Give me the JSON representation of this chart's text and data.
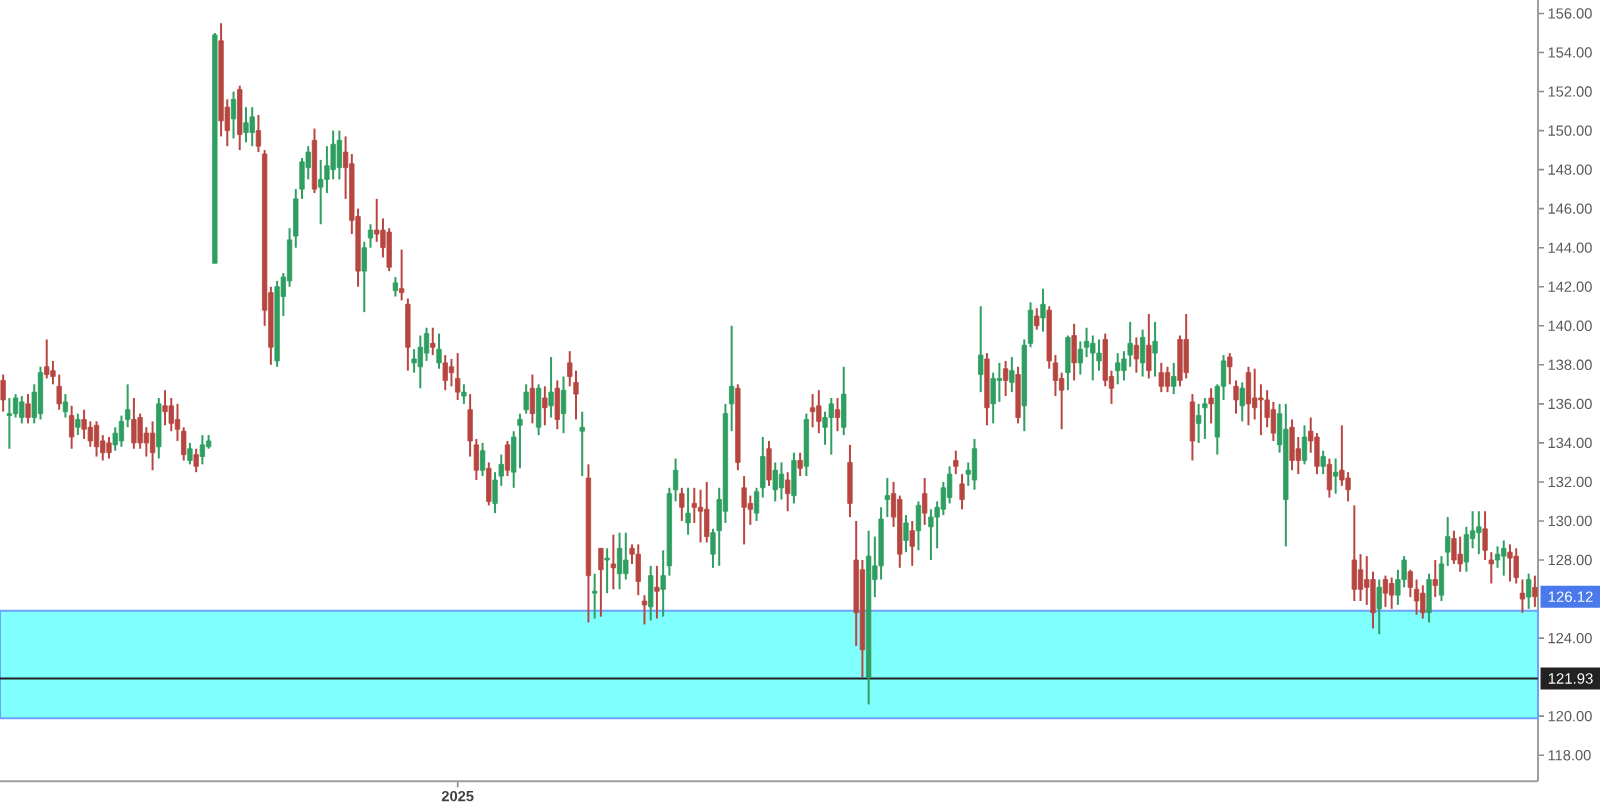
{
  "chart_data": {
    "type": "candlestick",
    "categories": [
      null,
      null,
      null,
      null,
      null,
      null,
      null,
      null,
      null,
      null,
      null,
      null,
      null,
      null,
      null,
      null,
      null,
      null,
      null,
      null,
      null,
      null,
      null,
      null,
      null,
      null,
      null,
      null,
      null,
      null,
      null,
      null,
      null,
      null,
      null,
      null,
      null,
      null,
      null,
      null,
      null,
      null,
      null,
      null,
      null,
      null,
      null,
      null,
      null,
      null,
      null,
      null,
      null,
      null,
      null,
      null,
      null,
      null,
      null,
      null,
      null,
      null,
      null,
      null,
      null,
      null,
      null,
      null,
      null,
      null,
      null,
      null,
      null,
      "2025",
      null,
      null,
      null,
      null,
      null,
      null,
      null,
      null,
      null,
      null,
      null,
      null,
      null,
      null,
      null,
      null,
      null,
      null,
      null,
      null,
      null,
      null,
      null,
      null,
      null,
      null,
      null,
      null,
      null,
      null,
      null,
      null,
      null,
      null,
      null,
      null,
      null,
      null,
      null,
      null,
      null,
      null,
      null,
      null,
      null,
      null,
      null,
      null,
      null,
      null,
      null,
      null,
      null,
      null,
      null,
      null,
      null,
      null,
      null,
      null,
      null,
      null,
      null,
      null,
      null,
      null,
      null,
      null,
      null,
      null,
      null,
      null,
      null,
      null,
      null,
      null,
      null,
      null,
      null,
      null,
      null,
      null,
      null,
      null,
      null,
      null,
      null,
      null,
      null,
      null,
      null,
      null,
      null,
      null,
      null,
      null,
      null,
      null,
      null,
      null,
      null,
      null,
      null,
      null,
      null,
      null,
      null,
      null,
      null,
      null,
      null,
      null,
      null,
      null,
      null,
      null,
      null,
      null,
      null,
      null,
      null,
      null,
      null,
      null,
      null,
      null,
      null,
      null,
      null,
      null,
      null,
      null,
      null,
      null,
      null,
      null,
      null,
      null,
      null,
      null,
      null,
      null,
      null,
      null,
      null,
      null,
      null,
      null,
      null,
      null,
      null,
      null,
      null,
      null,
      null,
      null,
      null,
      null,
      null,
      null,
      null,
      null,
      null,
      null,
      null,
      null,
      null,
      null,
      null,
      null,
      null,
      null,
      null
    ],
    "ohlc": [
      [
        137.2,
        137.5,
        135.6,
        136.2
      ],
      [
        135.4,
        136.3,
        133.7,
        135.5
      ],
      [
        135.5,
        136.5,
        135.3,
        136.3
      ],
      [
        135.3,
        136.4,
        135.0,
        136.1
      ],
      [
        136.0,
        136.5,
        135.0,
        135.3
      ],
      [
        135.3,
        137.0,
        135.0,
        136.6
      ],
      [
        135.5,
        137.9,
        135.2,
        137.6
      ],
      [
        137.9,
        139.3,
        137.3,
        137.5
      ],
      [
        137.7,
        138.2,
        137.0,
        137.4
      ],
      [
        136.9,
        137.5,
        135.7,
        136.0
      ],
      [
        135.6,
        136.5,
        135.3,
        136.1
      ],
      [
        135.4,
        135.9,
        133.7,
        134.3
      ],
      [
        134.8,
        135.5,
        134.4,
        135.2
      ],
      [
        135.2,
        135.7,
        134.2,
        134.7
      ],
      [
        134.8,
        135.1,
        133.8,
        134.1
      ],
      [
        134.9,
        135.1,
        133.3,
        133.8
      ],
      [
        134.1,
        134.4,
        133.1,
        133.5
      ],
      [
        134.0,
        134.3,
        133.2,
        133.5
      ],
      [
        133.9,
        134.8,
        133.6,
        134.5
      ],
      [
        134.1,
        135.4,
        133.8,
        135.1
      ],
      [
        135.2,
        137.0,
        134.8,
        135.7
      ],
      [
        135.2,
        136.3,
        133.7,
        134.0
      ],
      [
        135.3,
        135.5,
        133.7,
        134.0
      ],
      [
        134.5,
        134.8,
        133.3,
        134.0
      ],
      [
        134.5,
        135.1,
        132.6,
        133.5
      ],
      [
        133.8,
        136.3,
        133.2,
        136.0
      ],
      [
        135.9,
        136.7,
        134.9,
        135.6
      ],
      [
        135.9,
        136.3,
        134.6,
        135.0
      ],
      [
        135.2,
        136.0,
        134.1,
        134.7
      ],
      [
        134.6,
        134.8,
        133.1,
        133.4
      ],
      [
        133.1,
        134.0,
        132.9,
        133.7
      ],
      [
        133.4,
        133.7,
        132.5,
        132.8
      ],
      [
        133.3,
        134.4,
        132.9,
        133.9
      ],
      [
        133.8,
        134.4,
        133.7,
        134.1
      ],
      [
        143.2,
        155.0,
        143.2,
        154.9
      ],
      [
        154.6,
        155.5,
        149.7,
        150.5
      ],
      [
        151.2,
        151.6,
        149.2,
        150.0
      ],
      [
        150.6,
        152.0,
        149.6,
        151.6
      ],
      [
        152.1,
        152.3,
        149.0,
        149.8
      ],
      [
        149.9,
        151.2,
        149.4,
        150.4
      ],
      [
        149.9,
        151.2,
        149.2,
        150.7
      ],
      [
        150.0,
        150.8,
        148.9,
        149.2
      ],
      [
        148.8,
        149.0,
        140.0,
        140.8
      ],
      [
        141.7,
        142.0,
        138.0,
        138.9
      ],
      [
        138.2,
        142.3,
        137.9,
        142.0
      ],
      [
        141.5,
        142.7,
        140.5,
        142.5
      ],
      [
        142.3,
        145.0,
        142.0,
        144.4
      ],
      [
        144.6,
        147.0,
        144.0,
        146.5
      ],
      [
        147.0,
        148.6,
        146.5,
        148.4
      ],
      [
        148.1,
        149.2,
        147.5,
        148.9
      ],
      [
        149.5,
        150.1,
        146.8,
        147.0
      ],
      [
        147.1,
        148.5,
        145.2,
        147.5
      ],
      [
        147.5,
        149.2,
        146.8,
        148.2
      ],
      [
        148.0,
        150.0,
        147.5,
        149.3
      ],
      [
        148.1,
        150.0,
        147.5,
        149.5
      ],
      [
        148.9,
        149.7,
        146.5,
        148.1
      ],
      [
        148.3,
        148.8,
        144.7,
        145.4
      ],
      [
        145.6,
        146.0,
        142.0,
        142.8
      ],
      [
        142.8,
        144.3,
        140.7,
        144.0
      ],
      [
        144.5,
        145.2,
        144.0,
        144.9
      ],
      [
        144.9,
        146.5,
        144.3,
        144.7
      ],
      [
        144.9,
        145.5,
        143.5,
        144.0
      ],
      [
        144.8,
        145.0,
        142.8,
        143.0
      ],
      [
        141.8,
        142.5,
        141.5,
        142.2
      ],
      [
        141.9,
        143.9,
        141.3,
        141.7
      ],
      [
        141.1,
        141.4,
        137.7,
        138.9
      ],
      [
        138.1,
        138.8,
        137.6,
        138.3
      ],
      [
        137.9,
        139.5,
        136.8,
        138.9
      ],
      [
        138.6,
        139.9,
        138.2,
        139.6
      ],
      [
        139.1,
        139.9,
        138.5,
        138.9
      ],
      [
        138.1,
        139.6,
        137.8,
        138.8
      ],
      [
        138.1,
        138.5,
        136.7,
        137.2
      ],
      [
        137.9,
        138.3,
        136.9,
        137.6
      ],
      [
        137.3,
        138.6,
        136.2,
        136.6
      ],
      [
        136.4,
        137.0,
        136.0,
        136.6
      ],
      [
        135.7,
        136.5,
        133.3,
        134.1
      ],
      [
        133.9,
        134.2,
        132.1,
        132.6
      ],
      [
        132.6,
        134.0,
        132.3,
        133.6
      ],
      [
        132.7,
        133.0,
        130.8,
        131.0
      ],
      [
        130.9,
        132.5,
        130.4,
        132.1
      ],
      [
        132.3,
        133.4,
        131.8,
        132.9
      ],
      [
        133.9,
        134.1,
        132.3,
        132.6
      ],
      [
        132.5,
        134.6,
        131.7,
        134.3
      ],
      [
        134.9,
        135.5,
        132.7,
        135.2
      ],
      [
        135.7,
        137.0,
        135.5,
        136.6
      ],
      [
        136.8,
        137.5,
        135.0,
        135.5
      ],
      [
        134.8,
        137.0,
        134.4,
        136.8
      ],
      [
        136.3,
        136.9,
        134.9,
        135.8
      ],
      [
        135.9,
        138.4,
        135.3,
        136.6
      ],
      [
        136.8,
        137.2,
        134.7,
        135.2
      ],
      [
        135.5,
        137.4,
        134.5,
        136.7
      ],
      [
        138.1,
        138.7,
        136.9,
        137.4
      ],
      [
        137.1,
        137.7,
        135.2,
        136.5
      ],
      [
        134.6,
        135.6,
        132.3,
        134.8
      ],
      [
        132.2,
        132.9,
        124.8,
        127.2
      ],
      [
        126.3,
        127.3,
        125.0,
        126.4
      ],
      [
        128.6,
        128.6,
        125.1,
        127.5
      ],
      [
        128.0,
        128.6,
        126.3,
        128.1
      ],
      [
        127.8,
        129.3,
        126.5,
        127.6
      ],
      [
        127.3,
        129.4,
        126.5,
        128.6
      ],
      [
        127.3,
        129.4,
        127.0,
        128.0
      ],
      [
        128.6,
        128.8,
        127.8,
        128.3
      ],
      [
        128.3,
        128.8,
        126.2,
        126.9
      ],
      [
        125.9,
        126.2,
        124.7,
        125.7
      ],
      [
        125.6,
        127.7,
        124.9,
        127.2
      ],
      [
        126.6,
        127.7,
        125.0,
        126.4
      ],
      [
        126.5,
        128.5,
        125.1,
        127.2
      ],
      [
        127.7,
        131.7,
        127.2,
        131.4
      ],
      [
        131.6,
        133.2,
        131.0,
        132.6
      ],
      [
        131.4,
        131.7,
        130.0,
        130.7
      ],
      [
        129.9,
        131.7,
        129.3,
        130.4
      ],
      [
        130.9,
        131.7,
        129.9,
        130.7
      ],
      [
        130.7,
        131.6,
        128.9,
        130.5
      ],
      [
        130.6,
        132.0,
        128.9,
        129.2
      ],
      [
        128.3,
        129.6,
        127.6,
        129.4
      ],
      [
        129.5,
        131.7,
        127.7,
        131.1
      ],
      [
        130.5,
        136.0,
        129.9,
        135.5
      ],
      [
        136.0,
        140.0,
        134.6,
        136.9
      ],
      [
        136.8,
        137.0,
        132.6,
        133.0
      ],
      [
        131.7,
        132.3,
        128.8,
        130.7
      ],
      [
        130.9,
        131.3,
        129.8,
        130.6
      ],
      [
        130.4,
        131.7,
        130.0,
        131.5
      ],
      [
        131.7,
        134.3,
        131.2,
        133.3
      ],
      [
        133.7,
        134.1,
        131.8,
        132.1
      ],
      [
        131.6,
        133.0,
        131.0,
        132.6
      ],
      [
        131.7,
        133.0,
        131.1,
        132.4
      ],
      [
        132.1,
        132.5,
        130.5,
        131.4
      ],
      [
        131.3,
        133.5,
        130.9,
        133.1
      ],
      [
        133.1,
        133.5,
        132.3,
        132.7
      ],
      [
        132.8,
        135.5,
        132.3,
        135.2
      ],
      [
        135.8,
        136.5,
        134.8,
        135.6
      ],
      [
        135.9,
        136.7,
        134.5,
        135.1
      ],
      [
        134.8,
        135.6,
        133.9,
        135.3
      ],
      [
        135.3,
        136.3,
        133.4,
        136.0
      ],
      [
        135.7,
        136.3,
        134.6,
        135.3
      ],
      [
        134.8,
        137.9,
        134.4,
        136.5
      ],
      [
        133.0,
        133.9,
        130.2,
        130.9
      ],
      [
        128.0,
        130.0,
        123.6,
        125.3
      ],
      [
        127.5,
        128.0,
        122.0,
        123.4
      ],
      [
        122.0,
        129.5,
        120.6,
        128.2
      ],
      [
        127.0,
        129.2,
        126.1,
        127.7
      ],
      [
        127.7,
        130.7,
        127.0,
        130.1
      ],
      [
        131.1,
        132.2,
        130.2,
        131.3
      ],
      [
        131.4,
        132.0,
        129.7,
        130.2
      ],
      [
        131.1,
        131.3,
        127.6,
        128.3
      ],
      [
        129.0,
        130.3,
        128.4,
        129.9
      ],
      [
        129.5,
        130.0,
        127.7,
        128.7
      ],
      [
        129.5,
        131.0,
        128.5,
        130.8
      ],
      [
        131.4,
        132.2,
        129.8,
        130.4
      ],
      [
        129.7,
        130.6,
        128.0,
        130.2
      ],
      [
        130.2,
        131.0,
        128.6,
        130.7
      ],
      [
        130.6,
        132.0,
        130.3,
        131.7
      ],
      [
        131.2,
        132.8,
        130.9,
        132.4
      ],
      [
        133.1,
        133.6,
        132.4,
        132.8
      ],
      [
        131.9,
        132.4,
        130.6,
        131.1
      ],
      [
        132.4,
        133.0,
        131.8,
        132.6
      ],
      [
        132.1,
        134.2,
        131.6,
        133.7
      ],
      [
        137.5,
        141.0,
        136.6,
        138.5
      ],
      [
        138.3,
        138.6,
        134.9,
        135.8
      ],
      [
        136.0,
        137.6,
        135.0,
        137.3
      ],
      [
        137.2,
        138.1,
        136.1,
        137.3
      ],
      [
        137.8,
        138.2,
        136.4,
        137.2
      ],
      [
        137.1,
        138.4,
        136.6,
        137.7
      ],
      [
        137.5,
        137.9,
        135.0,
        135.3
      ],
      [
        135.9,
        139.3,
        134.6,
        139.0
      ],
      [
        139.1,
        141.2,
        138.9,
        140.8
      ],
      [
        140.5,
        140.9,
        139.8,
        140.0
      ],
      [
        140.4,
        141.9,
        139.7,
        141.1
      ],
      [
        140.8,
        141.0,
        137.8,
        138.2
      ],
      [
        138.1,
        138.5,
        136.4,
        137.2
      ],
      [
        137.3,
        137.6,
        134.7,
        136.7
      ],
      [
        137.6,
        139.5,
        136.7,
        139.4
      ],
      [
        139.5,
        140.1,
        137.2,
        138.1
      ],
      [
        138.1,
        139.2,
        137.5,
        138.8
      ],
      [
        138.9,
        139.9,
        138.4,
        139.2
      ],
      [
        138.6,
        139.5,
        137.2,
        139.1
      ],
      [
        138.2,
        139.3,
        137.7,
        138.6
      ],
      [
        139.3,
        139.6,
        136.9,
        137.2
      ],
      [
        137.4,
        137.7,
        136.0,
        136.8
      ],
      [
        137.7,
        138.6,
        137.0,
        138.1
      ],
      [
        137.7,
        138.7,
        137.2,
        138.3
      ],
      [
        138.5,
        140.2,
        137.9,
        139.1
      ],
      [
        139.0,
        139.4,
        137.6,
        138.3
      ],
      [
        138.1,
        139.8,
        137.4,
        139.4
      ],
      [
        139.0,
        140.6,
        137.3,
        137.7
      ],
      [
        138.6,
        140.2,
        137.4,
        139.2
      ],
      [
        137.6,
        138.1,
        136.6,
        136.9
      ],
      [
        137.6,
        137.9,
        136.6,
        136.9
      ],
      [
        136.9,
        138.1,
        136.5,
        137.4
      ],
      [
        139.3,
        139.5,
        136.9,
        137.2
      ],
      [
        139.3,
        140.6,
        137.3,
        137.6
      ],
      [
        136.1,
        136.5,
        133.1,
        134.1
      ],
      [
        135.0,
        136.0,
        134.0,
        135.4
      ],
      [
        135.8,
        136.3,
        134.2,
        136.0
      ],
      [
        136.3,
        136.8,
        135.0,
        136.0
      ],
      [
        134.3,
        137.0,
        133.4,
        136.9
      ],
      [
        136.9,
        138.5,
        136.2,
        138.2
      ],
      [
        138.4,
        138.6,
        137.0,
        137.9
      ],
      [
        136.9,
        137.2,
        135.5,
        136.2
      ],
      [
        135.9,
        137.1,
        135.1,
        136.8
      ],
      [
        137.6,
        137.9,
        134.9,
        136.0
      ],
      [
        136.3,
        137.8,
        135.2,
        135.8
      ],
      [
        136.3,
        137.0,
        134.4,
        136.2
      ],
      [
        136.2,
        136.7,
        134.8,
        135.3
      ],
      [
        135.7,
        136.1,
        134.1,
        134.5
      ],
      [
        133.9,
        136.0,
        133.5,
        135.5
      ],
      [
        131.1,
        136.0,
        128.7,
        134.7
      ],
      [
        134.8,
        135.2,
        132.6,
        133.1
      ],
      [
        133.7,
        134.3,
        132.4,
        133.1
      ],
      [
        133.1,
        134.9,
        132.9,
        134.3
      ],
      [
        134.6,
        135.3,
        133.5,
        134.1
      ],
      [
        134.3,
        134.5,
        132.4,
        132.8
      ],
      [
        132.8,
        133.6,
        132.4,
        133.3
      ],
      [
        132.9,
        133.2,
        131.2,
        131.6
      ],
      [
        132.3,
        133.2,
        131.4,
        132.5
      ],
      [
        132.6,
        134.9,
        131.8,
        132.1
      ],
      [
        132.2,
        132.5,
        131.0,
        131.6
      ],
      [
        128.0,
        130.8,
        125.9,
        126.5
      ],
      [
        127.5,
        128.3,
        125.9,
        126.5
      ],
      [
        127.0,
        128.2,
        125.7,
        126.6
      ],
      [
        127.0,
        127.4,
        124.5,
        125.3
      ],
      [
        125.5,
        127.0,
        124.2,
        126.6
      ],
      [
        127.0,
        127.2,
        125.6,
        126.3
      ],
      [
        126.8,
        127.1,
        125.5,
        126.2
      ],
      [
        126.2,
        127.5,
        125.7,
        127.0
      ],
      [
        127.0,
        128.2,
        126.6,
        128.0
      ],
      [
        127.4,
        127.5,
        126.1,
        126.6
      ],
      [
        126.5,
        127.0,
        125.2,
        125.9
      ],
      [
        126.3,
        126.7,
        125.0,
        125.3
      ],
      [
        125.3,
        127.3,
        124.8,
        127.0
      ],
      [
        127.0,
        128.0,
        126.1,
        126.7
      ],
      [
        126.2,
        128.2,
        125.9,
        127.8
      ],
      [
        128.4,
        130.2,
        127.7,
        129.2
      ],
      [
        129.1,
        129.5,
        127.8,
        128.0
      ],
      [
        128.3,
        129.2,
        127.4,
        127.8
      ],
      [
        127.9,
        129.7,
        127.4,
        129.3
      ],
      [
        129.1,
        130.5,
        128.6,
        129.5
      ],
      [
        129.4,
        130.5,
        128.3,
        129.7
      ],
      [
        129.6,
        130.5,
        128.0,
        128.5
      ],
      [
        128.0,
        128.4,
        126.8,
        127.8
      ],
      [
        128.0,
        128.7,
        127.6,
        128.3
      ],
      [
        128.2,
        129.0,
        127.2,
        128.6
      ],
      [
        128.4,
        128.8,
        126.9,
        128.1
      ],
      [
        128.2,
        128.6,
        126.8,
        127.1
      ],
      [
        126.3,
        127.0,
        125.3,
        126.0
      ],
      [
        126.1,
        127.3,
        125.5,
        127.0
      ],
      [
        126.6,
        127.2,
        125.6,
        126.12
      ]
    ],
    "colors": [
      "#b84640",
      "#2e9e61",
      "#2e9e61",
      "#2e9e61",
      "#b84640",
      "#2e9e61",
      "#2e9e61",
      "#b84640",
      "#b84640",
      "#b84640",
      "#2e9e61",
      "#b84640",
      "#2e9e61",
      "#b84640",
      "#b84640",
      "#b84640",
      "#b84640",
      "#b84640",
      "#2e9e61",
      "#2e9e61",
      "#2e9e61",
      "#b84640",
      "#b84640",
      "#b84640",
      "#b84640",
      "#2e9e61",
      "#b84640",
      "#b84640",
      "#b84640",
      "#b84640",
      "#2e9e61",
      "#b84640",
      "#2e9e61",
      "#2e9e61",
      "#2e9e61",
      "#b84640",
      "#b84640",
      "#2e9e61",
      "#b84640",
      "#2e9e61",
      "#2e9e61",
      "#b84640",
      "#b84640",
      "#b84640",
      "#2e9e61",
      "#2e9e61",
      "#2e9e61",
      "#2e9e61",
      "#2e9e61",
      "#2e9e61",
      "#b84640",
      "#2e9e61",
      "#2e9e61",
      "#2e9e61",
      "#2e9e61",
      "#b84640",
      "#b84640",
      "#b84640",
      "#2e9e61",
      "#2e9e61",
      "#b84640",
      "#b84640",
      "#b84640",
      "#2e9e61",
      "#b84640",
      "#b84640",
      "#2e9e61",
      "#2e9e61",
      "#2e9e61",
      "#b84640",
      "#2e9e61",
      "#b84640",
      "#b84640",
      "#b84640",
      "#2e9e61",
      "#b84640",
      "#b84640",
      "#2e9e61",
      "#b84640",
      "#2e9e61",
      "#2e9e61",
      "#b84640",
      "#2e9e61",
      "#2e9e61",
      "#2e9e61",
      "#b84640",
      "#2e9e61",
      "#b84640",
      "#2e9e61",
      "#b84640",
      "#2e9e61",
      "#b84640",
      "#b84640",
      "#2e9e61",
      "#b84640",
      "#2e9e61",
      "#b84640",
      "#2e9e61",
      "#b84640",
      "#2e9e61",
      "#2e9e61",
      "#b84640",
      "#b84640",
      "#b84640",
      "#2e9e61",
      "#b84640",
      "#2e9e61",
      "#2e9e61",
      "#2e9e61",
      "#b84640",
      "#2e9e61",
      "#b84640",
      "#b84640",
      "#b84640",
      "#2e9e61",
      "#2e9e61",
      "#2e9e61",
      "#2e9e61",
      "#b84640",
      "#b84640",
      "#b84640",
      "#2e9e61",
      "#2e9e61",
      "#b84640",
      "#2e9e61",
      "#2e9e61",
      "#b84640",
      "#2e9e61",
      "#b84640",
      "#2e9e61",
      "#b84640",
      "#b84640",
      "#2e9e61",
      "#2e9e61",
      "#b84640",
      "#2e9e61",
      "#b84640",
      "#b84640",
      "#b84640",
      "#2e9e61",
      "#2e9e61",
      "#2e9e61",
      "#2e9e61",
      "#b84640",
      "#b84640",
      "#2e9e61",
      "#b84640",
      "#2e9e61",
      "#b84640",
      "#2e9e61",
      "#2e9e61",
      "#2e9e61",
      "#2e9e61",
      "#b84640",
      "#b84640",
      "#2e9e61",
      "#2e9e61",
      "#2e9e61",
      "#b84640",
      "#2e9e61",
      "#2e9e61",
      "#b84640",
      "#2e9e61",
      "#b84640",
      "#2e9e61",
      "#2e9e61",
      "#b84640",
      "#2e9e61",
      "#b84640",
      "#b84640",
      "#b84640",
      "#2e9e61",
      "#b84640",
      "#2e9e61",
      "#2e9e61",
      "#2e9e61",
      "#2e9e61",
      "#b84640",
      "#b84640",
      "#2e9e61",
      "#2e9e61",
      "#2e9e61",
      "#b84640",
      "#2e9e61",
      "#b84640",
      "#2e9e61",
      "#b84640",
      "#b84640",
      "#2e9e61",
      "#b84640",
      "#b84640",
      "#b84640",
      "#2e9e61",
      "#2e9e61",
      "#b84640",
      "#2e9e61",
      "#2e9e61",
      "#b84640",
      "#b84640",
      "#2e9e61",
      "#b84640",
      "#b84640",
      "#b84640",
      "#b84640",
      "#b84640",
      "#2e9e61",
      "#2e9e61",
      "#b84640",
      "#b84640",
      "#2e9e61",
      "#b84640",
      "#b84640",
      "#2e9e61",
      "#b84640",
      "#2e9e61",
      "#b84640",
      "#b84640",
      "#b84640",
      "#b84640",
      "#b84640",
      "#b84640",
      "#2e9e61",
      "#b84640",
      "#b84640",
      "#2e9e61",
      "#2e9e61",
      "#b84640",
      "#b84640",
      "#b84640",
      "#2e9e61",
      "#b84640",
      "#2e9e61",
      "#2e9e61",
      "#b84640",
      "#b84640",
      "#2e9e61",
      "#2e9e61",
      "#2e9e61",
      "#b84640",
      "#b84640",
      "#2e9e61",
      "#2e9e61",
      "#b84640",
      "#b84640",
      "#b84640",
      "#2e9e61",
      "#b84640"
    ],
    "ylim": [
      116.66,
      156.69
    ],
    "yticks": [
      {
        "value": 118,
        "label": "118.00"
      },
      {
        "value": 120,
        "label": "120.00"
      },
      {
        "value": 124,
        "label": "124.00"
      },
      {
        "value": 128,
        "label": "128.00"
      },
      {
        "value": 130,
        "label": "130.00"
      },
      {
        "value": 132,
        "label": "132.00"
      },
      {
        "value": 134,
        "label": "134.00"
      },
      {
        "value": 136,
        "label": "136.00"
      },
      {
        "value": 138,
        "label": "138.00"
      },
      {
        "value": 140,
        "label": "140.00"
      },
      {
        "value": 142,
        "label": "142.00"
      },
      {
        "value": 144,
        "label": "144.00"
      },
      {
        "value": 146,
        "label": "146.00"
      },
      {
        "value": 148,
        "label": "148.00"
      },
      {
        "value": 150,
        "label": "150.00"
      },
      {
        "value": 152,
        "label": "152.00"
      },
      {
        "value": 154,
        "label": "154.00"
      },
      {
        "value": 156,
        "label": "156.00"
      }
    ],
    "ref_lines": [
      {
        "axis": "y",
        "value": 121.93,
        "label": "121.93",
        "color": "#222222"
      }
    ],
    "bands": [
      {
        "axis": "y",
        "from": 119.9,
        "to": 125.4,
        "color": "#80ffff"
      }
    ],
    "annotations": [
      {
        "text": "126.12",
        "y": 126.12
      }
    ]
  }
}
